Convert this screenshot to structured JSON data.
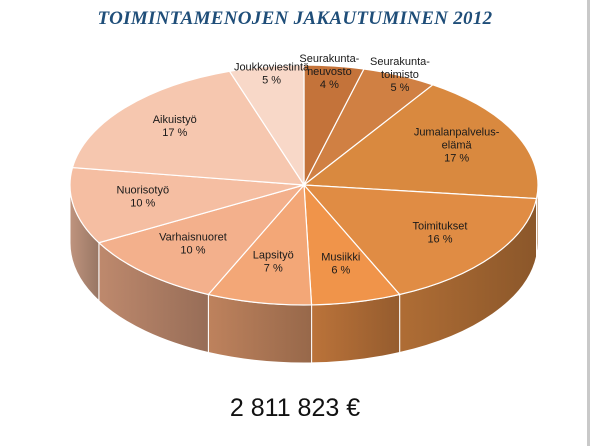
{
  "chart_data": {
    "type": "pie",
    "title": "TOIMINTAMENOJEN JAKAUTUMINEN 2012",
    "three_d": true,
    "slices": [
      {
        "label": "Seurakunta-neuvosto",
        "value": 4,
        "value_label": "4 %",
        "color": "#c4733a"
      },
      {
        "label": "Seurakunta-toimisto",
        "value": 5,
        "value_label": "5 %",
        "color": "#d08043"
      },
      {
        "label": "Jumalanpalvelus-elämä",
        "value": 17,
        "value_label": "17 %",
        "color": "#d9893f"
      },
      {
        "label": "Toimitukset",
        "value": 16,
        "value_label": "16 %",
        "color": "#e08c44"
      },
      {
        "label": "Musiikki",
        "value": 6,
        "value_label": "6 %",
        "color": "#f0944a"
      },
      {
        "label": "Lapsityö",
        "value": 7,
        "value_label": "7 %",
        "color": "#f3a777"
      },
      {
        "label": "Varhaisnuoret",
        "value": 10,
        "value_label": "10 %",
        "color": "#f3b08c"
      },
      {
        "label": "Nuorisotyö",
        "value": 10,
        "value_label": "10 %",
        "color": "#f5bea2"
      },
      {
        "label": "Aikuistyö",
        "value": 17,
        "value_label": "17 %",
        "color": "#f6c7af"
      },
      {
        "label": "Joukkoviestintä",
        "value": 5,
        "value_label": "5 %",
        "color": "#f8d8c8"
      }
    ]
  },
  "total": "2 811 823 €"
}
